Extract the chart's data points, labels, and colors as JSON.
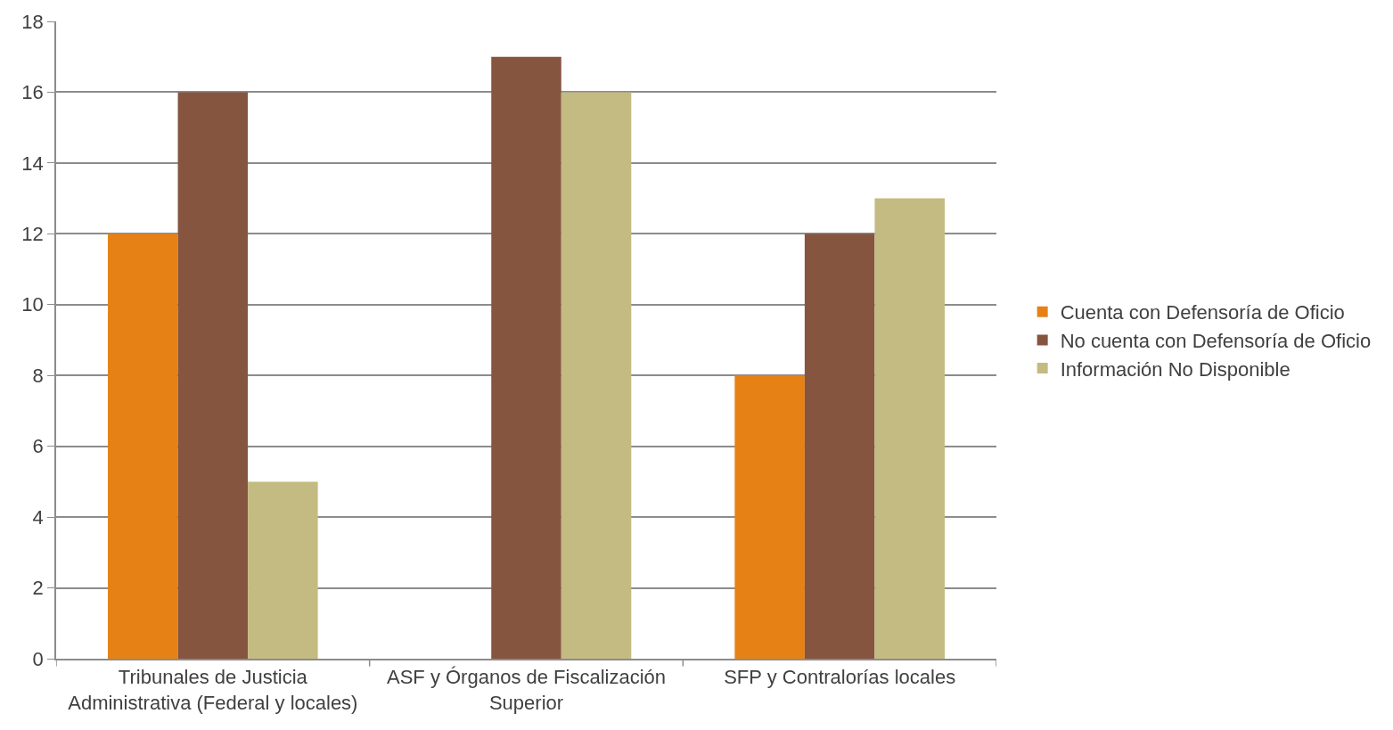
{
  "chart_data": {
    "type": "bar",
    "categories": [
      "Tribunales de Justicia Administrativa (Federal y locales)",
      "ASF y Órganos de Fiscalización Superior",
      "SFP y Contralorías locales"
    ],
    "series": [
      {
        "name": "Cuenta con Defensoría de Oficio",
        "color": "#e68115",
        "values": [
          12,
          0,
          8
        ]
      },
      {
        "name": "No cuenta con Defensoría de Oficio",
        "color": "#865540",
        "values": [
          16,
          17,
          12
        ]
      },
      {
        "name": "Información No Disponible",
        "color": "#c3bb81",
        "values": [
          5,
          16,
          13
        ]
      }
    ],
    "ylim": [
      0,
      18
    ],
    "yticks": [
      0,
      2,
      4,
      6,
      8,
      10,
      12,
      14,
      16,
      18
    ],
    "grid": "y",
    "legend": "right"
  }
}
